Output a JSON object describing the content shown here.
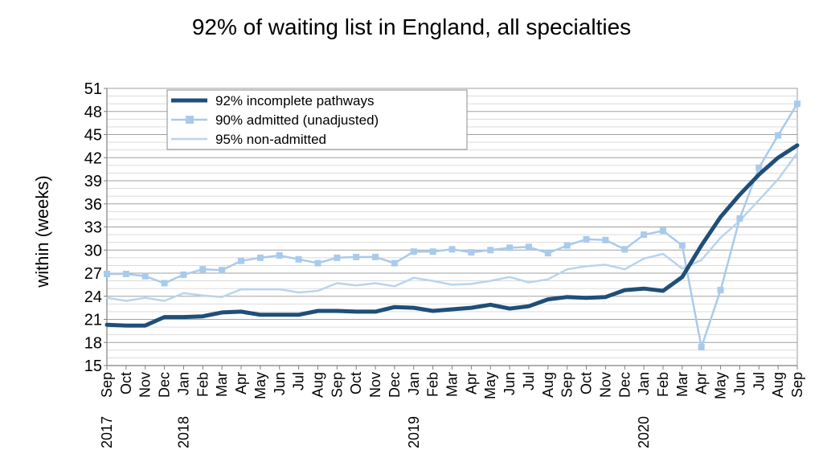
{
  "chart_data": {
    "type": "line",
    "title": "92% of waiting list in England, all specialties",
    "xlabel": "",
    "ylabel": "within  (weeks)",
    "ylim": [
      15,
      51
    ],
    "yticks": [
      15,
      18,
      21,
      24,
      27,
      30,
      33,
      36,
      39,
      42,
      45,
      48,
      51
    ],
    "grid": true,
    "legend_position": "top-left",
    "categories": [
      "Sep",
      "Oct",
      "Nov",
      "Dec",
      "Jan",
      "Feb",
      "Mar",
      "Apr",
      "May",
      "Jun",
      "Jul",
      "Aug",
      "Sep",
      "Oct",
      "Nov",
      "Dec",
      "Jan",
      "Feb",
      "Mar",
      "Apr",
      "May",
      "Jun",
      "Jul",
      "Aug",
      "Sep",
      "Oct",
      "Nov",
      "Dec",
      "Jan",
      "Feb",
      "Mar",
      "Apr",
      "May",
      "Jun",
      "Jul",
      "Aug",
      "Sep"
    ],
    "year_labels": [
      {
        "index": 0,
        "label": "2017"
      },
      {
        "index": 4,
        "label": "2018"
      },
      {
        "index": 16,
        "label": "2019"
      },
      {
        "index": 28,
        "label": "2020"
      }
    ],
    "series": [
      {
        "name": "92% incomplete pathways",
        "color": "#1f4e79",
        "marker": "none",
        "values": [
          20.3,
          20.2,
          20.2,
          21.3,
          21.3,
          21.4,
          21.9,
          22.0,
          21.6,
          21.6,
          21.6,
          22.1,
          22.1,
          22.0,
          22.0,
          22.6,
          22.5,
          22.1,
          22.3,
          22.5,
          22.9,
          22.4,
          22.7,
          23.6,
          23.9,
          23.8,
          23.9,
          24.8,
          25.0,
          24.7,
          26.5,
          30.6,
          34.3,
          37.2,
          39.8,
          42.0,
          43.6
        ]
      },
      {
        "name": "90% admitted (unadjusted)",
        "color": "#a9cbeb",
        "marker": "square",
        "values": [
          26.9,
          26.9,
          26.6,
          25.7,
          26.8,
          27.5,
          27.4,
          28.6,
          29.0,
          29.3,
          28.8,
          28.3,
          29.0,
          29.1,
          29.1,
          28.3,
          29.8,
          29.8,
          30.1,
          29.7,
          30.0,
          30.3,
          30.4,
          29.6,
          30.6,
          31.4,
          31.3,
          30.1,
          32.0,
          32.5,
          30.6,
          17.4,
          24.8,
          34.1,
          40.7,
          44.9,
          49.0
        ]
      },
      {
        "name": "95% non-admitted",
        "color": "#b8d4ee",
        "marker": "none",
        "values": [
          23.8,
          23.4,
          23.8,
          23.4,
          24.4,
          24.1,
          23.9,
          24.9,
          24.9,
          24.9,
          24.5,
          24.7,
          25.7,
          25.4,
          25.7,
          25.3,
          26.4,
          26.0,
          25.5,
          25.6,
          26.0,
          26.5,
          25.8,
          26.2,
          27.5,
          27.9,
          28.1,
          27.5,
          28.9,
          29.5,
          27.6,
          28.7,
          31.6,
          33.8,
          36.5,
          39.2,
          42.6
        ]
      }
    ]
  }
}
